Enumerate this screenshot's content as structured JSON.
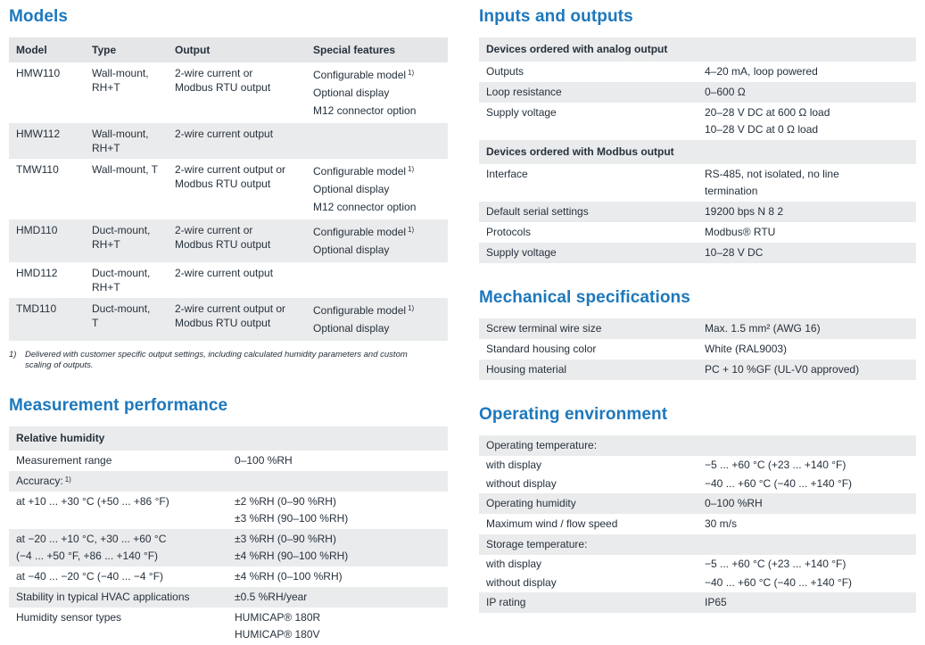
{
  "accent_color": "#1d78bc",
  "text_color": "#26313c",
  "row_shade_color": "#eaebec",
  "header_shade_color": "#e4e6e8",
  "left_column": {
    "models": {
      "title": "Models",
      "headers": [
        "Model",
        "Type",
        "Output",
        "Special features"
      ],
      "rows": [
        {
          "shaded": false,
          "model": "HMW110",
          "type_lines": [
            "Wall-mount,",
            "RH+T"
          ],
          "output_lines": [
            "2-wire current or",
            "Modbus RTU output"
          ],
          "features": [
            {
              "text": "Configurable model",
              "sup": "1)"
            },
            {
              "text": "Optional display"
            },
            {
              "text": "M12 connector option"
            }
          ]
        },
        {
          "shaded": true,
          "model": "HMW112",
          "type_lines": [
            "Wall-mount,",
            "RH+T"
          ],
          "output_lines": [
            "2-wire current output"
          ],
          "features": []
        },
        {
          "shaded": false,
          "model": "TMW110",
          "type_lines": [
            "Wall-mount, T"
          ],
          "output_lines": [
            "2-wire current output or",
            "Modbus RTU output"
          ],
          "features": [
            {
              "text": "Configurable model",
              "sup": "1)"
            },
            {
              "text": "Optional display"
            },
            {
              "text": "M12 connector option"
            }
          ]
        },
        {
          "shaded": true,
          "model": "HMD110",
          "type_lines": [
            "Duct-mount,",
            "RH+T"
          ],
          "output_lines": [
            "2-wire current or",
            "Modbus RTU output"
          ],
          "features": [
            {
              "text": "Configurable model",
              "sup": "1)"
            },
            {
              "text": "Optional display"
            }
          ]
        },
        {
          "shaded": false,
          "model": "HMD112",
          "type_lines": [
            "Duct-mount,",
            "RH+T"
          ],
          "output_lines": [
            "2-wire current output"
          ],
          "features": []
        },
        {
          "shaded": true,
          "model": "TMD110",
          "type_lines": [
            "Duct-mount,",
            "T"
          ],
          "output_lines": [
            "2-wire current output or",
            "Modbus RTU output"
          ],
          "features": [
            {
              "text": "Configurable model",
              "sup": "1)"
            },
            {
              "text": "Optional display"
            }
          ]
        }
      ],
      "footnote": {
        "marker": "1)",
        "text": "Delivered with customer specific output settings, including calculated humidity parameters and custom scaling of outputs."
      }
    },
    "measurement": {
      "title": "Measurement performance",
      "rows": [
        {
          "kind": "section",
          "shaded": true,
          "label_lines": [
            "Relative humidity"
          ],
          "values": []
        },
        {
          "kind": "item",
          "shaded": false,
          "label_lines": [
            "Measurement range"
          ],
          "values": [
            "0–100 %RH"
          ]
        },
        {
          "kind": "item",
          "shaded": true,
          "label_lines": [
            "Accuracy:"
          ],
          "label_sup": "1)",
          "values": []
        },
        {
          "kind": "item",
          "shaded": false,
          "label_lines": [
            "at +10 ... +30 °C (+50 ... +86 °F)"
          ],
          "values": [
            "±2 %RH (0–90 %RH)",
            "±3 %RH (90–100 %RH)"
          ]
        },
        {
          "kind": "item",
          "shaded": true,
          "label_lines": [
            "at −20 ... +10 °C, +30 ... +60 °C",
            "(−4 ... +50 °F, +86 ... +140 °F)"
          ],
          "values": [
            "±3 %RH (0–90 %RH)",
            "±4 %RH (90–100 %RH)"
          ]
        },
        {
          "kind": "item",
          "shaded": false,
          "label_lines": [
            "at −40 ... −20 °C (−40 ... −4 °F)"
          ],
          "values": [
            "±4 %RH (0–100 %RH)"
          ]
        },
        {
          "kind": "item",
          "shaded": true,
          "label_lines": [
            "Stability in typical HVAC applications"
          ],
          "values": [
            "±0.5 %RH/year"
          ]
        },
        {
          "kind": "item",
          "shaded": false,
          "label_lines": [
            "Humidity sensor types"
          ],
          "values": [
            "HUMICAP® 180R",
            "HUMICAP® 180V"
          ]
        }
      ]
    }
  },
  "right_column": {
    "inputs_outputs": {
      "title": "Inputs and outputs",
      "rows": [
        {
          "kind": "section",
          "shaded": true,
          "label_lines": [
            "Devices ordered with analog output"
          ],
          "values": []
        },
        {
          "kind": "item",
          "shaded": false,
          "label_lines": [
            "Outputs"
          ],
          "values": [
            "4–20 mA, loop powered"
          ]
        },
        {
          "kind": "item",
          "shaded": true,
          "label_lines": [
            "Loop resistance"
          ],
          "values": [
            "0–600 Ω"
          ]
        },
        {
          "kind": "item",
          "shaded": false,
          "label_lines": [
            "Supply voltage"
          ],
          "values": [
            "20–28 V DC at 600 Ω load",
            "10–28 V DC at 0 Ω load"
          ]
        },
        {
          "kind": "section",
          "shaded": true,
          "label_lines": [
            "Devices ordered with Modbus output"
          ],
          "values": []
        },
        {
          "kind": "item",
          "shaded": false,
          "label_lines": [
            "Interface"
          ],
          "values": [
            "RS-485, not isolated, no line",
            "termination"
          ]
        },
        {
          "kind": "item",
          "shaded": true,
          "label_lines": [
            "Default serial settings"
          ],
          "values": [
            "19200 bps N 8 2"
          ]
        },
        {
          "kind": "item",
          "shaded": false,
          "label_lines": [
            "Protocols"
          ],
          "values": [
            "Modbus® RTU"
          ]
        },
        {
          "kind": "item",
          "shaded": true,
          "label_lines": [
            "Supply voltage"
          ],
          "values": [
            "10–28 V DC"
          ]
        }
      ]
    },
    "mechanical": {
      "title": "Mechanical specifications",
      "rows": [
        {
          "kind": "item",
          "shaded": true,
          "label_lines": [
            "Screw terminal wire size"
          ],
          "values": [
            "Max. 1.5 mm² (AWG 16)"
          ]
        },
        {
          "kind": "item",
          "shaded": false,
          "label_lines": [
            "Standard housing color"
          ],
          "values": [
            "White (RAL9003)"
          ]
        },
        {
          "kind": "item",
          "shaded": true,
          "label_lines": [
            "Housing material"
          ],
          "values": [
            "PC + 10 %GF (UL-V0 approved)"
          ]
        }
      ]
    },
    "operating": {
      "title": "Operating environment",
      "rows": [
        {
          "kind": "item",
          "shaded": true,
          "label_lines": [
            "Operating temperature:"
          ],
          "values": []
        },
        {
          "kind": "item",
          "shaded": false,
          "compact": true,
          "label_lines": [
            "with display"
          ],
          "values": [
            "−5 ... +60 °C (+23 ... +140 °F)"
          ]
        },
        {
          "kind": "item",
          "shaded": false,
          "compact": true,
          "label_lines": [
            "without display"
          ],
          "values": [
            "−40 ... +60 °C (−40 ... +140 °F)"
          ]
        },
        {
          "kind": "item",
          "shaded": true,
          "label_lines": [
            "Operating humidity"
          ],
          "values": [
            "0–100 %RH"
          ]
        },
        {
          "kind": "item",
          "shaded": false,
          "label_lines": [
            "Maximum wind / flow speed"
          ],
          "values": [
            "30 m/s"
          ]
        },
        {
          "kind": "item",
          "shaded": true,
          "label_lines": [
            "Storage temperature:"
          ],
          "values": []
        },
        {
          "kind": "item",
          "shaded": false,
          "compact": true,
          "label_lines": [
            "with display"
          ],
          "values": [
            "−5 ... +60 °C (+23 ... +140 °F)"
          ]
        },
        {
          "kind": "item",
          "shaded": false,
          "compact": true,
          "label_lines": [
            "without display"
          ],
          "values": [
            "−40 ... +60 °C (−40 ... +140 °F)"
          ]
        },
        {
          "kind": "item",
          "shaded": true,
          "label_lines": [
            "IP rating"
          ],
          "values": [
            "IP65"
          ]
        }
      ]
    }
  }
}
